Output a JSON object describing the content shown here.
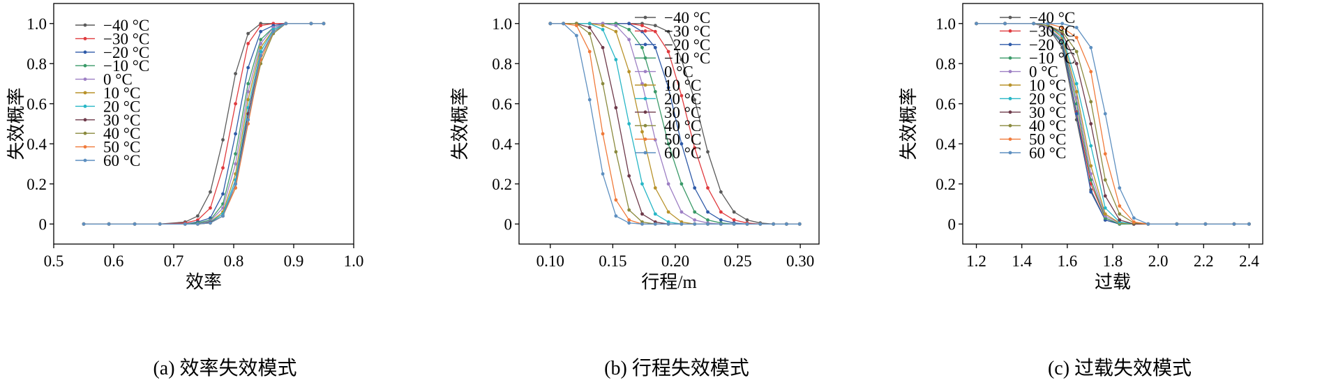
{
  "legend_labels": [
    "−40 °C",
    "−30 °C",
    "−20 °C",
    "−10 °C",
    "0 °C",
    "10 °C",
    "20 °C",
    "30 °C",
    "40 °C",
    "50 °C",
    "60 °C"
  ],
  "series_colors": [
    "#5a5a5a",
    "#e03a3e",
    "#2e5aa8",
    "#3a9a68",
    "#9d7fc4",
    "#b8922a",
    "#27b6c6",
    "#6e3a4a",
    "#8a8a3e",
    "#f07a3a",
    "#5d8fc0"
  ],
  "chart_data": [
    {
      "type": "line",
      "caption": "(a) 效率失效模式",
      "xlabel": "效率",
      "ylabel": "失效概率",
      "xlim": [
        0.5,
        1.0
      ],
      "ylim": [
        -0.1,
        1.1
      ],
      "xticks": [
        0.5,
        0.6,
        0.7,
        0.8,
        0.9,
        1.0
      ],
      "xtick_labels": [
        "0.5",
        "0.6",
        "0.7",
        "0.8",
        "0.9",
        "1.0"
      ],
      "yticks": [
        0,
        0.2,
        0.4,
        0.6,
        0.8,
        1.0
      ],
      "ytick_labels": [
        "0",
        "0.2",
        "0.4",
        "0.6",
        "0.8",
        "1.0"
      ],
      "legend": "top-left",
      "x": [
        0.55,
        0.592,
        0.635,
        0.677,
        0.719,
        0.74,
        0.761,
        0.782,
        0.803,
        0.824,
        0.845,
        0.866,
        0.887,
        0.929,
        0.95
      ],
      "series": [
        {
          "name": "−40 °C",
          "values": [
            0,
            0,
            0,
            0,
            0.01,
            0.04,
            0.16,
            0.42,
            0.75,
            0.95,
            1.0,
            1.0,
            1.0,
            1.0,
            1.0
          ]
        },
        {
          "name": "−30 °C",
          "values": [
            0,
            0,
            0,
            0,
            0.005,
            0.02,
            0.08,
            0.28,
            0.6,
            0.9,
            0.99,
            1.0,
            1.0,
            1.0,
            1.0
          ]
        },
        {
          "name": "−20 °C",
          "values": [
            0,
            0,
            0,
            0,
            0,
            0.01,
            0.03,
            0.15,
            0.45,
            0.78,
            0.96,
            0.99,
            1.0,
            1.0,
            1.0
          ]
        },
        {
          "name": "−10 °C",
          "values": [
            0,
            0,
            0,
            0,
            0,
            0.005,
            0.02,
            0.1,
            0.35,
            0.7,
            0.92,
            0.98,
            1.0,
            1.0,
            1.0
          ]
        },
        {
          "name": "0 °C",
          "values": [
            0,
            0,
            0,
            0,
            0,
            0,
            0.015,
            0.08,
            0.3,
            0.66,
            0.9,
            0.98,
            1.0,
            1.0,
            1.0
          ]
        },
        {
          "name": "10 °C",
          "values": [
            0,
            0,
            0,
            0,
            0,
            0,
            0.01,
            0.06,
            0.25,
            0.62,
            0.88,
            0.97,
            1.0,
            1.0,
            1.0
          ]
        },
        {
          "name": "20 °C",
          "values": [
            0,
            0,
            0,
            0,
            0,
            0,
            0.01,
            0.05,
            0.22,
            0.58,
            0.86,
            0.97,
            1.0,
            1.0,
            1.0
          ]
        },
        {
          "name": "30 °C",
          "values": [
            0,
            0,
            0,
            0,
            0,
            0,
            0.008,
            0.04,
            0.2,
            0.55,
            0.84,
            0.96,
            1.0,
            1.0,
            1.0
          ]
        },
        {
          "name": "40 °C",
          "values": [
            0,
            0,
            0,
            0,
            0,
            0,
            0.005,
            0.04,
            0.18,
            0.52,
            0.8,
            0.95,
            1.0,
            1.0,
            1.0
          ]
        },
        {
          "name": "50 °C",
          "values": [
            0,
            0,
            0,
            0,
            0,
            0,
            0.005,
            0.04,
            0.18,
            0.5,
            0.82,
            0.96,
            1.0,
            1.0,
            1.0
          ]
        },
        {
          "name": "60 °C",
          "values": [
            0,
            0,
            0,
            0,
            0,
            0,
            0.005,
            0.04,
            0.2,
            0.52,
            0.84,
            0.96,
            1.0,
            1.0,
            1.0
          ]
        }
      ]
    },
    {
      "type": "line",
      "caption": "(b) 行程失效模式",
      "xlabel": "行程/m",
      "ylabel": "失效概率",
      "xlim": [
        0.075,
        0.315
      ],
      "ylim": [
        -0.1,
        1.1
      ],
      "xticks": [
        0.1,
        0.15,
        0.2,
        0.25,
        0.3
      ],
      "xtick_labels": [
        "0.10",
        "0.15",
        "0.20",
        "0.25",
        "0.30"
      ],
      "yticks": [
        0,
        0.2,
        0.4,
        0.6,
        0.8,
        1.0
      ],
      "ytick_labels": [
        "0",
        "0.2",
        "0.4",
        "0.6",
        "0.8",
        "1.0"
      ],
      "legend": "top-right",
      "x": [
        0.1,
        0.1105,
        0.121,
        0.1315,
        0.142,
        0.1525,
        0.163,
        0.1735,
        0.184,
        0.1945,
        0.205,
        0.2155,
        0.226,
        0.2365,
        0.247,
        0.2575,
        0.268,
        0.2785,
        0.289,
        0.2995
      ],
      "series": [
        {
          "name": "−40 °C",
          "values": [
            1,
            1,
            1,
            1,
            1,
            1,
            1,
            1,
            0.99,
            0.96,
            0.82,
            0.62,
            0.36,
            0.16,
            0.06,
            0.02,
            0.005,
            0,
            0,
            0
          ]
        },
        {
          "name": "−30 °C",
          "values": [
            1,
            1,
            1,
            1,
            1,
            1,
            1,
            0.99,
            0.96,
            0.86,
            0.64,
            0.38,
            0.18,
            0.06,
            0.02,
            0.005,
            0,
            0,
            0,
            0
          ]
        },
        {
          "name": "−20 °C",
          "values": [
            1,
            1,
            1,
            1,
            1,
            1,
            1,
            0.96,
            0.88,
            0.68,
            0.4,
            0.18,
            0.06,
            0.02,
            0.005,
            0,
            0,
            0,
            0,
            0
          ]
        },
        {
          "name": "−10 °C",
          "values": [
            1,
            1,
            1,
            1,
            1,
            1,
            0.97,
            0.88,
            0.66,
            0.4,
            0.2,
            0.06,
            0.02,
            0.005,
            0,
            0,
            0,
            0,
            0,
            0
          ]
        },
        {
          "name": "0 °C",
          "values": [
            1,
            1,
            1,
            1,
            1,
            0.99,
            0.92,
            0.7,
            0.42,
            0.2,
            0.06,
            0.02,
            0.005,
            0,
            0,
            0,
            0,
            0,
            0,
            0
          ]
        },
        {
          "name": "10 °C",
          "values": [
            1,
            1,
            1,
            1,
            0.99,
            0.96,
            0.76,
            0.46,
            0.18,
            0.06,
            0.01,
            0,
            0,
            0,
            0,
            0,
            0,
            0,
            0,
            0
          ]
        },
        {
          "name": "20 °C",
          "values": [
            1,
            1,
            1,
            1,
            0.97,
            0.82,
            0.5,
            0.2,
            0.05,
            0.01,
            0,
            0,
            0,
            0,
            0,
            0,
            0,
            0,
            0,
            0
          ]
        },
        {
          "name": "30 °C",
          "values": [
            1,
            1,
            1,
            0.98,
            0.88,
            0.58,
            0.24,
            0.05,
            0.01,
            0,
            0,
            0,
            0,
            0,
            0,
            0,
            0,
            0,
            0,
            0
          ]
        },
        {
          "name": "40 °C",
          "values": [
            1,
            1,
            1,
            0.95,
            0.7,
            0.36,
            0.07,
            0.01,
            0,
            0,
            0,
            0,
            0,
            0,
            0,
            0,
            0,
            0,
            0,
            0
          ]
        },
        {
          "name": "50 °C",
          "values": [
            1,
            1,
            0.99,
            0.86,
            0.45,
            0.12,
            0.02,
            0,
            0,
            0,
            0,
            0,
            0,
            0,
            0,
            0,
            0,
            0,
            0,
            0
          ]
        },
        {
          "name": "60 °C",
          "values": [
            1,
            1,
            0.94,
            0.62,
            0.25,
            0.04,
            0.005,
            0,
            0,
            0,
            0,
            0,
            0,
            0,
            0,
            0,
            0,
            0,
            0,
            0
          ]
        }
      ]
    },
    {
      "type": "line",
      "caption": "(c) 过载失效模式",
      "xlabel": "过载",
      "ylabel": "失效概率",
      "xlim": [
        1.14,
        2.46
      ],
      "ylim": [
        -0.1,
        1.1
      ],
      "xticks": [
        1.2,
        1.4,
        1.6,
        1.8,
        2.0,
        2.2,
        2.4
      ],
      "xtick_labels": [
        "1.2",
        "1.4",
        "1.6",
        "1.8",
        "2.0",
        "2.2",
        "2.4"
      ],
      "yticks": [
        0,
        0.2,
        0.4,
        0.6,
        0.8,
        1.0
      ],
      "ytick_labels": [
        "0",
        "0.2",
        "0.4",
        "0.6",
        "0.8",
        "1.0"
      ],
      "legend": "top-right",
      "x": [
        1.2,
        1.326,
        1.452,
        1.515,
        1.578,
        1.641,
        1.704,
        1.767,
        1.83,
        1.893,
        1.956,
        2.082,
        2.208,
        2.334,
        2.4
      ],
      "series": [
        {
          "name": "−40 °C",
          "values": [
            1,
            1,
            1,
            0.98,
            0.88,
            0.52,
            0.17,
            0.02,
            0,
            0,
            0,
            0,
            0,
            0,
            0
          ]
        },
        {
          "name": "−30 °C",
          "values": [
            1,
            1,
            1,
            0.98,
            0.9,
            0.56,
            0.2,
            0.03,
            0,
            0,
            0,
            0,
            0,
            0,
            0
          ]
        },
        {
          "name": "−20 °C",
          "values": [
            1,
            1,
            1,
            0.98,
            0.9,
            0.55,
            0.16,
            0.02,
            0,
            0,
            0,
            0,
            0,
            0,
            0
          ]
        },
        {
          "name": "−10 °C",
          "values": [
            1,
            1,
            1,
            0.98,
            0.91,
            0.6,
            0.22,
            0.03,
            0,
            0,
            0,
            0,
            0,
            0,
            0
          ]
        },
        {
          "name": "0 °C",
          "values": [
            1,
            1,
            1,
            0.98,
            0.92,
            0.63,
            0.25,
            0.04,
            0.005,
            0,
            0,
            0,
            0,
            0,
            0
          ]
        },
        {
          "name": "10 °C",
          "values": [
            1,
            1,
            1,
            0.99,
            0.93,
            0.66,
            0.29,
            0.05,
            0.005,
            0,
            0,
            0,
            0,
            0,
            0
          ]
        },
        {
          "name": "20 °C",
          "values": [
            1,
            1,
            1,
            0.99,
            0.94,
            0.7,
            0.39,
            0.08,
            0.01,
            0,
            0,
            0,
            0,
            0,
            0
          ]
        },
        {
          "name": "30 °C",
          "values": [
            1,
            1,
            1,
            0.99,
            0.95,
            0.8,
            0.5,
            0.14,
            0.02,
            0,
            0,
            0,
            0,
            0,
            0
          ]
        },
        {
          "name": "40 °C",
          "values": [
            1,
            1,
            1,
            0.99,
            0.96,
            0.86,
            0.61,
            0.22,
            0.05,
            0.005,
            0,
            0,
            0,
            0,
            0
          ]
        },
        {
          "name": "50 °C",
          "values": [
            1,
            1,
            1,
            1,
            0.98,
            0.93,
            0.76,
            0.35,
            0.09,
            0.01,
            0,
            0,
            0,
            0,
            0
          ]
        },
        {
          "name": "60 °C",
          "values": [
            1,
            1,
            1,
            1,
            1,
            0.98,
            0.88,
            0.55,
            0.18,
            0.03,
            0,
            0,
            0,
            0,
            0
          ]
        }
      ]
    }
  ]
}
